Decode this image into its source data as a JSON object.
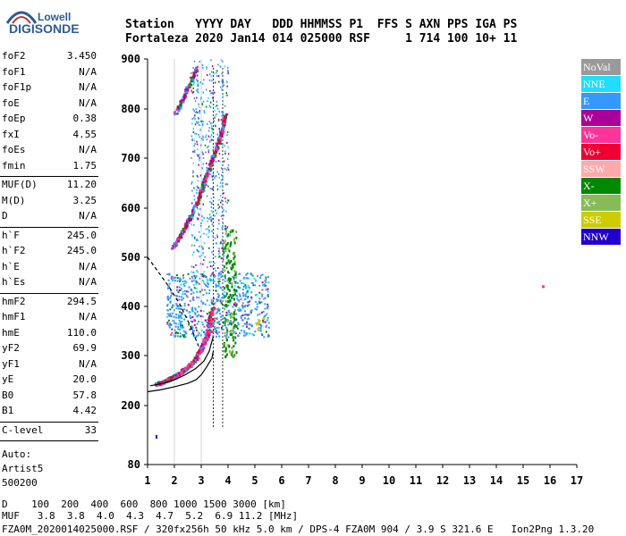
{
  "logo": {
    "top": "Lowell",
    "main": "DIGISONDE"
  },
  "header": {
    "line1": "Station   YYYY DAY   DDD HHMMSS P1  FFS S AXN PPS IGA PS",
    "line2": "Fortaleza 2020 Jan14 014 025000 RSF     1 714 100 10+ 11"
  },
  "params": [
    {
      "k": "foF2",
      "v": "3.450"
    },
    {
      "k": "foF1",
      "v": "N/A"
    },
    {
      "k": "foF1p",
      "v": "N/A"
    },
    {
      "k": "foE",
      "v": "N/A"
    },
    {
      "k": "foEp",
      "v": "0.38"
    },
    {
      "k": "fxI",
      "v": "4.55"
    },
    {
      "k": "foEs",
      "v": "N/A"
    },
    {
      "k": "fmin",
      "v": "1.75"
    },
    {
      "k": "MUF(D)",
      "v": "11.20"
    },
    {
      "k": "M(D)",
      "v": "3.25"
    },
    {
      "k": "D",
      "v": "N/A"
    },
    {
      "k": "h`F",
      "v": "245.0"
    },
    {
      "k": "h`F2",
      "v": "245.0"
    },
    {
      "k": "h`E",
      "v": "N/A"
    },
    {
      "k": "h`Es",
      "v": "N/A"
    },
    {
      "k": "hmF2",
      "v": "294.5"
    },
    {
      "k": "hmF1",
      "v": "N/A"
    },
    {
      "k": "hmE",
      "v": "110.0"
    },
    {
      "k": "yF2",
      "v": "69.9"
    },
    {
      "k": "yF1",
      "v": "N/A"
    },
    {
      "k": "yE",
      "v": "20.0"
    },
    {
      "k": "B0",
      "v": "57.8"
    },
    {
      "k": "B1",
      "v": "4.42"
    },
    {
      "k": "C-level",
      "v": "33"
    }
  ],
  "auto": {
    "l1": "Auto:",
    "l2": "Artist5",
    "l3": "500200"
  },
  "legend": [
    {
      "label": "NoVal",
      "color": "#999999"
    },
    {
      "label": "NNE",
      "color": "#22ddff"
    },
    {
      "label": "E",
      "color": "#3399ff"
    },
    {
      "label": "W",
      "color": "#aa0099"
    },
    {
      "label": "Vo-",
      "color": "#ff3399"
    },
    {
      "label": "Vo+",
      "color": "#ee0033"
    },
    {
      "label": "SSW",
      "color": "#ffaaaa"
    },
    {
      "label": "X-",
      "color": "#008800"
    },
    {
      "label": "X+",
      "color": "#88bb55"
    },
    {
      "label": "SSE",
      "color": "#cccc00"
    },
    {
      "label": "NNW",
      "color": "#2200cc"
    }
  ],
  "footer": {
    "d_line": "D    100  200  400  600  800 1000 1500 3000 [km]",
    "muf_line": "MUF   3.8  3.8  4.0  4.3  4.7  5.2  6.9 11.2 [MHz]",
    "info": "FZA0M_2020014025000.RSF / 320fx256h 50 kHz 5.0 km / DPS-4 FZA0M 904 / 3.9 S 321.6 E   Ion2Png 1.3.20"
  },
  "chart_data": {
    "type": "scatter",
    "x_ticks": [
      1,
      2,
      3,
      4,
      5,
      6,
      7,
      8,
      9,
      10,
      11,
      12,
      13,
      14,
      15,
      16,
      17
    ],
    "y_ticks": [
      80,
      200,
      300,
      400,
      500,
      600,
      700,
      800,
      900
    ],
    "xlim": [
      1,
      17
    ],
    "ylim": [
      80,
      900
    ],
    "grid": false,
    "profile_curve": {
      "x": [
        1.0,
        1.5,
        2.0,
        2.5,
        2.8,
        3.0,
        3.2,
        3.4,
        3.45
      ],
      "y": [
        228,
        232,
        238,
        245,
        252,
        262,
        278,
        296,
        310
      ]
    },
    "trace_curve": {
      "x": [
        1.1,
        1.6,
        2.0,
        2.4,
        2.8,
        3.1,
        3.3,
        3.45
      ],
      "y": [
        240,
        245,
        252,
        262,
        275,
        290,
        310,
        340
      ]
    },
    "upper_curve": {
      "x": [
        1.0,
        1.4,
        1.8,
        2.2,
        2.6,
        2.9
      ],
      "y": [
        500,
        470,
        440,
        405,
        360,
        320
      ]
    },
    "o_trace": [
      {
        "x": 1.3,
        "y": 245
      },
      {
        "x": 1.6,
        "y": 250
      },
      {
        "x": 1.9,
        "y": 258
      },
      {
        "x": 2.2,
        "y": 268
      },
      {
        "x": 2.5,
        "y": 280
      },
      {
        "x": 2.8,
        "y": 298
      },
      {
        "x": 3.0,
        "y": 320
      },
      {
        "x": 3.2,
        "y": 345
      },
      {
        "x": 3.3,
        "y": 370
      },
      {
        "x": 3.4,
        "y": 400
      }
    ],
    "multi_trace": [
      {
        "x": 1.9,
        "y": 520
      },
      {
        "x": 2.2,
        "y": 545
      },
      {
        "x": 2.5,
        "y": 575
      },
      {
        "x": 2.8,
        "y": 610
      },
      {
        "x": 3.0,
        "y": 640
      },
      {
        "x": 3.2,
        "y": 670
      },
      {
        "x": 3.4,
        "y": 700
      },
      {
        "x": 3.6,
        "y": 730
      },
      {
        "x": 3.75,
        "y": 760
      },
      {
        "x": 3.85,
        "y": 790
      }
    ],
    "high_trace": [
      {
        "x": 2.0,
        "y": 790
      },
      {
        "x": 2.2,
        "y": 810
      },
      {
        "x": 2.4,
        "y": 835
      },
      {
        "x": 2.6,
        "y": 860
      },
      {
        "x": 2.8,
        "y": 885
      }
    ],
    "spread_cloud": {
      "x_range": [
        1.7,
        5.5
      ],
      "y_range": [
        340,
        470
      ]
    },
    "outlier": {
      "x": 15.7,
      "y": 443
    },
    "low_point": {
      "x": 1.3,
      "y": 140
    }
  }
}
